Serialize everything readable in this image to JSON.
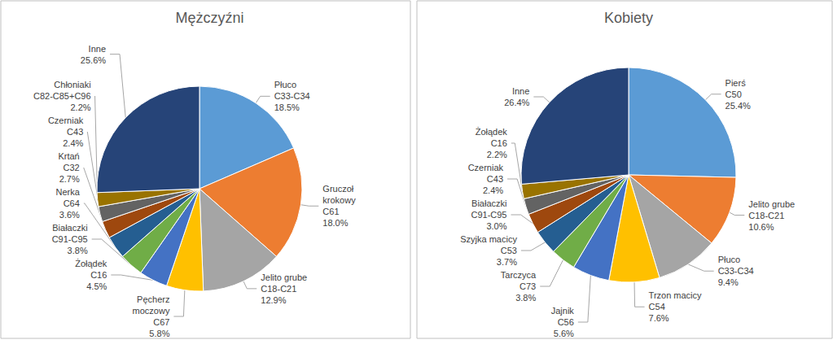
{
  "chart_data": [
    {
      "type": "pie",
      "title": "Mężczyźni",
      "categories": [
        "Płuco\nC33-C34",
        "Gruczoł\nkrokowy\nC61",
        "Jelito grube\nC18-C21",
        "Pęcherz\nmoczowy\nC67",
        "Żołądek\nC16",
        "Białaczki\nC91-C95",
        "Nerka\nC64",
        "Krtań\nC32",
        "Czerniak\nC43",
        "Chłoniaki\nC82-C85+C96",
        "Inne"
      ],
      "values": [
        18.5,
        18.0,
        12.9,
        5.8,
        4.5,
        3.8,
        3.6,
        2.7,
        2.4,
        2.2,
        25.6
      ],
      "value_labels": [
        "18.5%",
        "18.0%",
        "12.9%",
        "5.8%",
        "4.5%",
        "3.8%",
        "3.6%",
        "2.7%",
        "2.4%",
        "2.2%",
        "25.6%"
      ],
      "colors": [
        "#5b9bd5",
        "#ed7d31",
        "#a5a5a5",
        "#ffc000",
        "#4472c4",
        "#70ad47",
        "#255e91",
        "#9e480e",
        "#636363",
        "#997300",
        "#264478"
      ],
      "data_labels": true
    },
    {
      "type": "pie",
      "title": "Kobiety",
      "categories": [
        "Pierś\nC50",
        "Jelito grube\nC18-C21",
        "Płuco\nC33-C34",
        "Trzon macicy\nC54",
        "Jajnik\nC56",
        "Tarczyca\nC73",
        "Szyjka macicy\nC53",
        "Białaczki\nC91-C95",
        "Czerniak\nC43",
        "Żołądek\nC16",
        "Inne"
      ],
      "values": [
        25.4,
        10.6,
        9.4,
        7.6,
        5.6,
        3.8,
        3.7,
        3.0,
        2.4,
        2.2,
        26.4
      ],
      "value_labels": [
        "25.4%",
        "10.6%",
        "9.4%",
        "7.6%",
        "5.6%",
        "3.8%",
        "3.7%",
        "3.0%",
        "2.4%",
        "2.2%",
        "26.4%"
      ],
      "colors": [
        "#5b9bd5",
        "#ed7d31",
        "#a5a5a5",
        "#ffc000",
        "#4472c4",
        "#70ad47",
        "#255e91",
        "#9e480e",
        "#636363",
        "#997300",
        "#264478"
      ],
      "data_labels": true
    }
  ]
}
